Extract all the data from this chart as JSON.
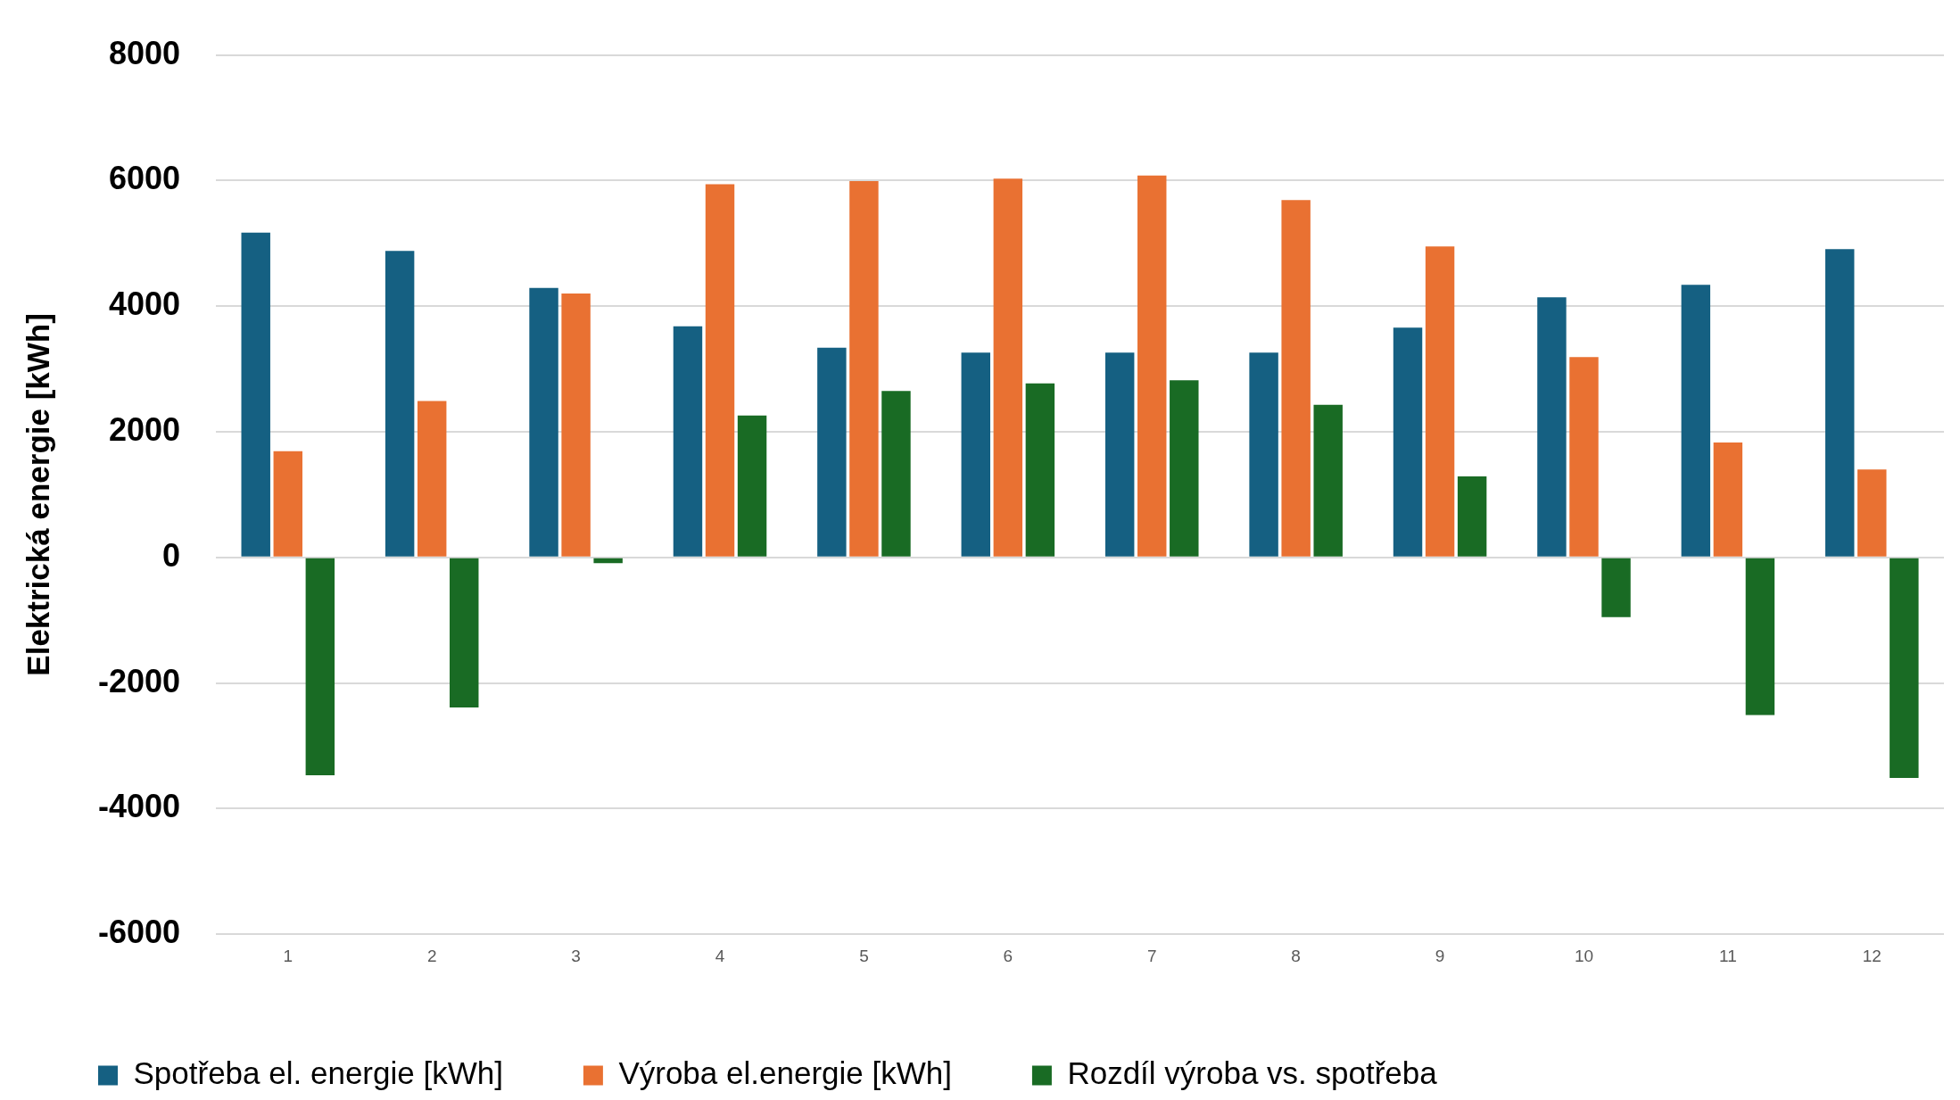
{
  "chart_data": {
    "type": "bar",
    "ylabel": "Elektrická energie [kWh]",
    "categories": [
      "1",
      "2",
      "3",
      "4",
      "5",
      "6",
      "7",
      "8",
      "9",
      "10",
      "11",
      "12"
    ],
    "series": [
      {
        "name": "Spotřeba el. energie [kWh]",
        "color": "#156082",
        "values": [
          5170,
          4880,
          4290,
          3680,
          3340,
          3260,
          3260,
          3260,
          3660,
          4140,
          4340,
          4910
        ]
      },
      {
        "name": "Výroba el.energie [kWh]",
        "color": "#e97132",
        "values": [
          1690,
          2490,
          4200,
          5940,
          5990,
          6030,
          6080,
          5690,
          4950,
          3190,
          1830,
          1400
        ]
      },
      {
        "name": "Rozdíl výroba vs. spotřeba",
        "color": "#196b24",
        "values": [
          -3470,
          -2390,
          -90,
          2260,
          2650,
          2770,
          2820,
          2430,
          1290,
          -950,
          -2510,
          -3510
        ]
      }
    ],
    "ylim": [
      -6000,
      8000
    ],
    "yticks": [
      -6000,
      -4000,
      -2000,
      0,
      2000,
      4000,
      6000,
      8000
    ],
    "grid": "y",
    "legend": "bottom"
  }
}
